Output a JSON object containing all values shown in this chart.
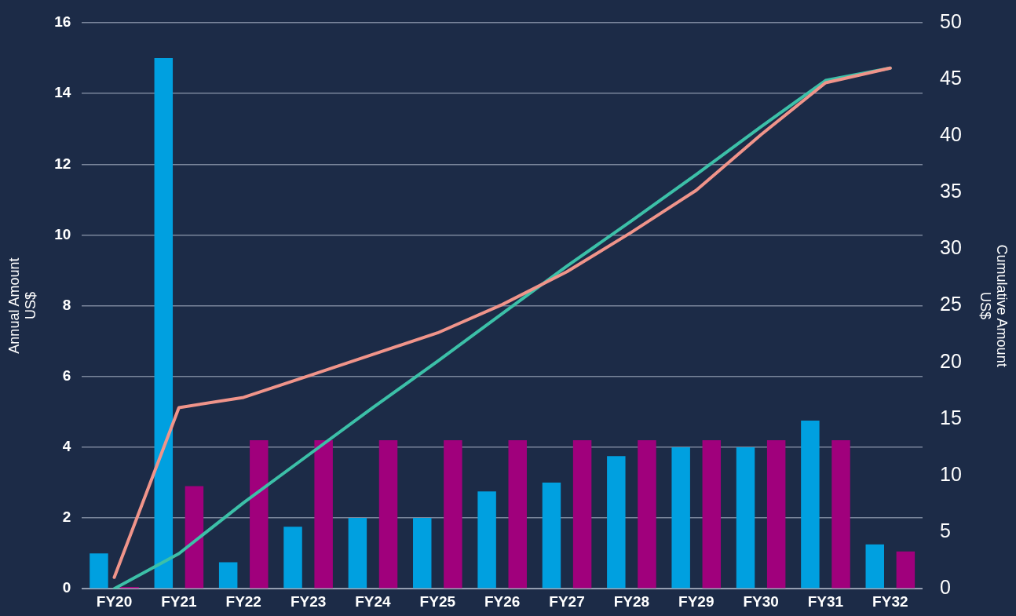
{
  "chart_data": {
    "type": "bar",
    "ylabel": "Annual Amount\nUS$",
    "y2label": "Cumulative Amount\nUS$",
    "categories": [
      "FY20",
      "FY21",
      "FY22",
      "FY23",
      "FY24",
      "FY25",
      "FY26",
      "FY27",
      "FY28",
      "FY29",
      "FY30",
      "FY31",
      "FY32"
    ],
    "series": [
      {
        "color": "#00a0e0",
        "values": [
          1.0,
          15,
          0.75,
          1.75,
          2,
          2,
          2.75,
          3,
          3.75,
          4,
          4,
          4.75,
          1.25
        ]
      },
      {
        "color": "#a0007c",
        "values": [
          0.05,
          2.9,
          4.2,
          4.2,
          4.2,
          4.2,
          4.2,
          4.2,
          4.2,
          4.2,
          4.2,
          4.2,
          1.05
        ]
      },
      {
        "type": "line",
        "axis": "y2",
        "color": "#f0948a",
        "values": [
          1.0,
          16.0,
          16.9,
          18.8,
          20.7,
          22.6,
          25.1,
          28.0,
          31.5,
          35.2,
          40.1,
          44.7,
          46.0
        ]
      },
      {
        "type": "line",
        "axis": "y2",
        "color": "#3cc0a8",
        "values": [
          0,
          3.1,
          7.6,
          11.8,
          16.0,
          20.1,
          24.3,
          28.5,
          32.5,
          36.6,
          40.8,
          44.9,
          46.0
        ]
      }
    ],
    "ylim": [
      0,
      16
    ],
    "yticks": [
      0,
      2,
      4,
      6,
      8,
      10,
      12,
      14,
      16
    ],
    "y2lim": [
      0,
      50
    ],
    "y2ticks": [
      0,
      5,
      10,
      15,
      20,
      25,
      30,
      35,
      40,
      45,
      50
    ],
    "grid": "y",
    "legend": false,
    "marker": "none",
    "line_style": "solid"
  }
}
